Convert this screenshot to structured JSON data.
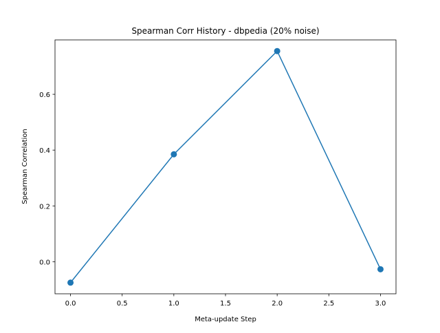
{
  "chart_data": {
    "type": "line",
    "title": "Spearman Corr History - dbpedia (20% noise)",
    "xlabel": "Meta-update Step",
    "ylabel": "Spearman Correlation",
    "x": [
      0,
      1,
      2,
      3
    ],
    "series": [
      {
        "values": [
          -0.075,
          0.385,
          0.755,
          -0.027
        ],
        "color": "#1f77b4",
        "marker": "circle"
      }
    ],
    "xlim": [
      -0.15,
      3.15
    ],
    "ylim": [
      -0.115,
      0.795
    ],
    "xticks": [
      0.0,
      0.5,
      1.0,
      1.5,
      2.0,
      2.5,
      3.0
    ],
    "xtick_labels": [
      "0.0",
      "0.5",
      "1.0",
      "1.5",
      "2.0",
      "2.5",
      "3.0"
    ],
    "yticks": [
      0.0,
      0.2,
      0.4,
      0.6
    ],
    "ytick_labels": [
      "0.0",
      "0.2",
      "0.4",
      "0.6"
    ],
    "grid": false,
    "legend": "none"
  }
}
